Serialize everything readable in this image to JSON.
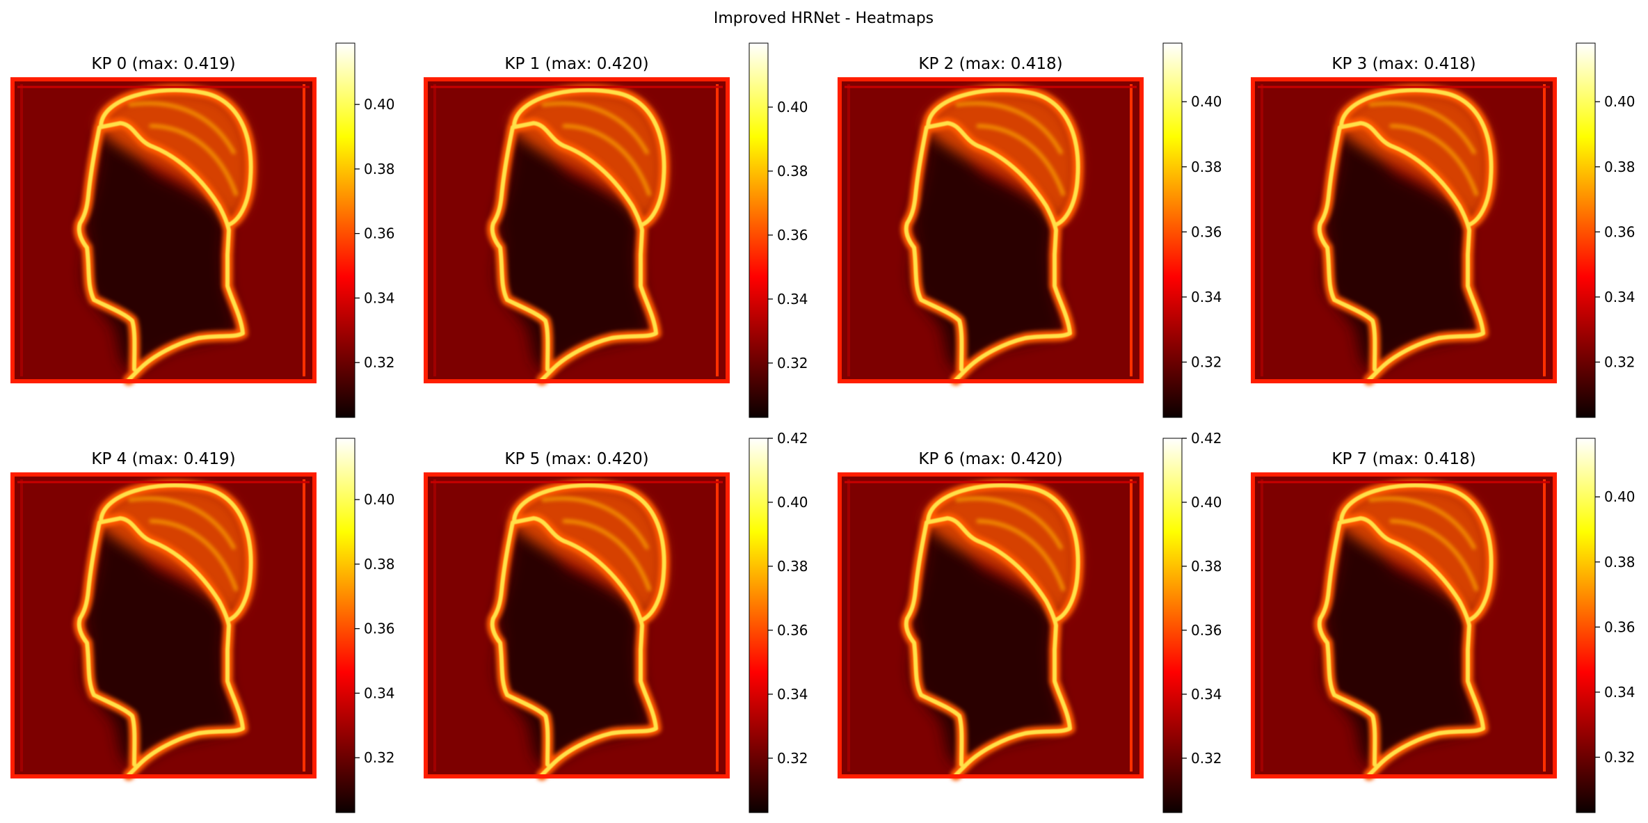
{
  "figure": {
    "suptitle": "Improved HRNet - Heatmaps"
  },
  "chart_data": [
    {
      "type": "heatmap",
      "title": "KP 0 (max: 0.419)",
      "max": 0.419,
      "colormap": "hot",
      "colorbar": {
        "vmin": 0.303,
        "vmax": 0.419,
        "ticks": [
          0.32,
          0.34,
          0.36,
          0.38,
          0.4
        ],
        "tick_labels": [
          "0.32",
          "0.34",
          "0.36",
          "0.38",
          "0.40"
        ]
      }
    },
    {
      "type": "heatmap",
      "title": "KP 1 (max: 0.420)",
      "max": 0.42,
      "colormap": "hot",
      "colorbar": {
        "vmin": 0.303,
        "vmax": 0.42,
        "ticks": [
          0.32,
          0.34,
          0.36,
          0.38,
          0.4
        ],
        "tick_labels": [
          "0.32",
          "0.34",
          "0.36",
          "0.38",
          "0.40"
        ]
      }
    },
    {
      "type": "heatmap",
      "title": "KP 2 (max: 0.418)",
      "max": 0.418,
      "colormap": "hot",
      "colorbar": {
        "vmin": 0.303,
        "vmax": 0.418,
        "ticks": [
          0.32,
          0.34,
          0.36,
          0.38,
          0.4
        ],
        "tick_labels": [
          "0.32",
          "0.34",
          "0.36",
          "0.38",
          "0.40"
        ]
      }
    },
    {
      "type": "heatmap",
      "title": "KP 3 (max: 0.418)",
      "max": 0.418,
      "colormap": "hot",
      "colorbar": {
        "vmin": 0.303,
        "vmax": 0.418,
        "ticks": [
          0.32,
          0.34,
          0.36,
          0.38,
          0.4
        ],
        "tick_labels": [
          "0.32",
          "0.34",
          "0.36",
          "0.38",
          "0.40"
        ]
      }
    },
    {
      "type": "heatmap",
      "title": "KP 4 (max: 0.419)",
      "max": 0.419,
      "colormap": "hot",
      "colorbar": {
        "vmin": 0.303,
        "vmax": 0.419,
        "ticks": [
          0.32,
          0.34,
          0.36,
          0.38,
          0.4
        ],
        "tick_labels": [
          "0.32",
          "0.34",
          "0.36",
          "0.38",
          "0.40"
        ]
      }
    },
    {
      "type": "heatmap",
      "title": "KP 5 (max: 0.420)",
      "max": 0.42,
      "colormap": "hot",
      "colorbar": {
        "vmin": 0.303,
        "vmax": 0.42,
        "ticks": [
          0.32,
          0.34,
          0.36,
          0.38,
          0.4,
          0.42
        ],
        "tick_labels": [
          "0.32",
          "0.34",
          "0.36",
          "0.38",
          "0.40",
          "0.42"
        ]
      }
    },
    {
      "type": "heatmap",
      "title": "KP 6 (max: 0.420)",
      "max": 0.42,
      "colormap": "hot",
      "colorbar": {
        "vmin": 0.303,
        "vmax": 0.42,
        "ticks": [
          0.32,
          0.34,
          0.36,
          0.38,
          0.4,
          0.42
        ],
        "tick_labels": [
          "0.32",
          "0.34",
          "0.36",
          "0.38",
          "0.40",
          "0.42"
        ]
      }
    },
    {
      "type": "heatmap",
      "title": "KP 7 (max: 0.418)",
      "max": 0.418,
      "colormap": "hot",
      "colorbar": {
        "vmin": 0.303,
        "vmax": 0.418,
        "ticks": [
          0.32,
          0.34,
          0.36,
          0.38,
          0.4
        ],
        "tick_labels": [
          "0.32",
          "0.34",
          "0.36",
          "0.38",
          "0.40"
        ]
      }
    }
  ]
}
